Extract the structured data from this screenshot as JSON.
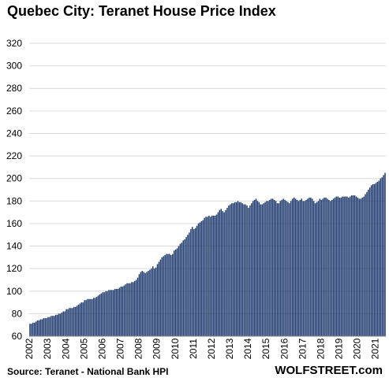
{
  "chart_data": {
    "type": "bar",
    "title": "Quebec City: Teranet House Price Index",
    "xlabel": "",
    "ylabel": "",
    "ylim": [
      60,
      320
    ],
    "yticks": [
      "60",
      "80",
      "100",
      "120",
      "140",
      "160",
      "180",
      "200",
      "220",
      "240",
      "260",
      "280",
      "300",
      "320"
    ],
    "xticks": [
      "2002",
      "2003",
      "2004",
      "2005",
      "2006",
      "2007",
      "2008",
      "2009",
      "2010",
      "2011",
      "2012",
      "2013",
      "2014",
      "2015",
      "2016",
      "2017",
      "2018",
      "2019",
      "2020",
      "2021"
    ],
    "grid": true,
    "bar_color": "#1f3a6e",
    "frequency": "monthly",
    "x_start": "2002-01",
    "x_end": "2021-07",
    "annual_values": [
      {
        "period": "2002",
        "values": [
          71,
          71,
          72,
          72,
          73,
          74,
          74,
          75,
          75,
          76,
          76,
          76
        ]
      },
      {
        "period": "2003",
        "values": [
          77,
          77,
          78,
          78,
          78,
          79,
          79,
          80,
          80,
          81,
          82,
          82
        ]
      },
      {
        "period": "2004",
        "values": [
          84,
          84,
          85,
          85,
          85,
          86,
          86,
          87,
          88,
          89,
          90,
          90
        ]
      },
      {
        "period": "2005",
        "values": [
          92,
          92,
          93,
          93,
          93,
          93,
          94,
          94,
          95,
          96,
          97,
          98
        ]
      },
      {
        "period": "2006",
        "values": [
          99,
          99,
          100,
          100,
          101,
          101,
          101,
          101,
          102,
          102,
          102,
          103
        ]
      },
      {
        "period": "2007",
        "values": [
          104,
          104,
          105,
          106,
          107,
          107,
          107,
          108,
          108,
          109,
          110,
          112
        ]
      },
      {
        "period": "2008",
        "values": [
          115,
          117,
          118,
          117,
          116,
          117,
          118,
          119,
          120,
          122,
          120,
          121
        ]
      },
      {
        "period": "2009",
        "values": [
          124,
          126,
          128,
          130,
          131,
          132,
          133,
          133,
          133,
          132,
          133,
          136
        ]
      },
      {
        "period": "2010",
        "values": [
          137,
          138,
          140,
          142,
          143,
          145,
          146,
          148,
          150,
          152,
          155,
          157
        ]
      },
      {
        "period": "2011",
        "values": [
          155,
          156,
          158,
          160,
          161,
          162,
          163,
          165,
          166,
          166,
          167,
          166
        ]
      },
      {
        "period": "2012",
        "values": [
          167,
          167,
          167,
          168,
          170,
          172,
          173,
          171,
          170,
          172,
          174,
          176
        ]
      },
      {
        "period": "2013",
        "values": [
          177,
          178,
          178,
          179,
          179,
          180,
          179,
          179,
          178,
          177,
          177,
          176
        ]
      },
      {
        "period": "2014",
        "values": [
          174,
          176,
          178,
          180,
          181,
          182,
          180,
          179,
          177,
          177,
          178,
          179
        ]
      },
      {
        "period": "2015",
        "values": [
          180,
          180,
          181,
          182,
          182,
          181,
          180,
          178,
          178,
          180,
          181,
          182
        ]
      },
      {
        "period": "2016",
        "values": [
          181,
          180,
          179,
          178,
          180,
          182,
          183,
          182,
          181,
          180,
          181,
          182
        ]
      },
      {
        "period": "2017",
        "values": [
          180,
          180,
          181,
          182,
          183,
          183,
          182,
          180,
          178,
          179,
          180,
          182
        ]
      },
      {
        "period": "2018",
        "values": [
          181,
          182,
          183,
          183,
          182,
          181,
          180,
          181,
          182,
          183,
          184,
          184
        ]
      },
      {
        "period": "2019",
        "values": [
          183,
          183,
          184,
          184,
          184,
          184,
          183,
          184,
          185,
          185,
          185,
          184
        ]
      },
      {
        "period": "2020",
        "values": [
          183,
          182,
          182,
          183,
          184,
          186,
          188,
          190,
          192,
          194,
          195,
          195
        ]
      },
      {
        "period": "2021",
        "values": [
          196,
          197,
          198,
          200,
          201,
          203,
          205
        ]
      }
    ]
  },
  "footer": {
    "source": "Source: Teranet - National Bank HPI",
    "brand": "WOLFSTREET.com"
  }
}
